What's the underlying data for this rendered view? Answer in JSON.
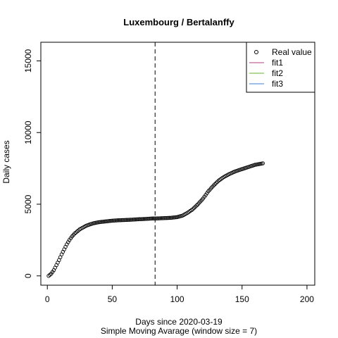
{
  "chart_data": {
    "type": "scatter",
    "title": "Luxembourg / Bertalanffy",
    "xlabel": "Days since 2020-03-19",
    "subtitle": "Simple Moving Avarage (window size = 7)",
    "ylabel": "Daily cases",
    "xlim": [
      -5,
      206
    ],
    "ylim": [
      -650,
      16300
    ],
    "x_ticks": [
      0,
      50,
      100,
      150,
      200
    ],
    "y_ticks": [
      0,
      5000,
      10000,
      15000
    ],
    "x_tick_labels": [
      "0",
      "50",
      "100",
      "150",
      "200"
    ],
    "y_tick_labels": [
      "0",
      "5000",
      "10000",
      "15000"
    ],
    "vline_x": 83,
    "grid": false,
    "legend_position": "top-right",
    "legend": [
      {
        "label": "Real value",
        "type": "point",
        "color": "#000000"
      },
      {
        "label": "fit1",
        "type": "line",
        "color": "#b0407a"
      },
      {
        "label": "fit2",
        "type": "line",
        "color": "#5cb82e"
      },
      {
        "label": "fit3",
        "type": "line",
        "color": "#3a7fd0"
      }
    ],
    "series": [
      {
        "name": "Real value",
        "x": [
          1,
          3,
          5,
          7,
          9,
          11,
          13,
          15,
          17,
          19,
          21,
          23,
          25,
          27,
          30,
          33,
          36,
          40,
          45,
          50,
          55,
          60,
          65,
          70,
          75,
          80,
          85,
          90,
          95,
          100,
          104,
          108,
          112,
          116,
          120,
          124,
          128,
          132,
          136,
          140,
          145,
          150,
          155,
          160,
          163,
          166
        ],
        "y": [
          0,
          150,
          400,
          750,
          1100,
          1500,
          1850,
          2200,
          2500,
          2750,
          2950,
          3100,
          3250,
          3350,
          3500,
          3600,
          3680,
          3750,
          3800,
          3850,
          3880,
          3900,
          3920,
          3950,
          3970,
          4000,
          4010,
          4030,
          4050,
          4100,
          4200,
          4400,
          4650,
          5000,
          5400,
          5900,
          6300,
          6650,
          6900,
          7100,
          7300,
          7450,
          7600,
          7750,
          7800,
          7850
        ]
      }
    ]
  }
}
